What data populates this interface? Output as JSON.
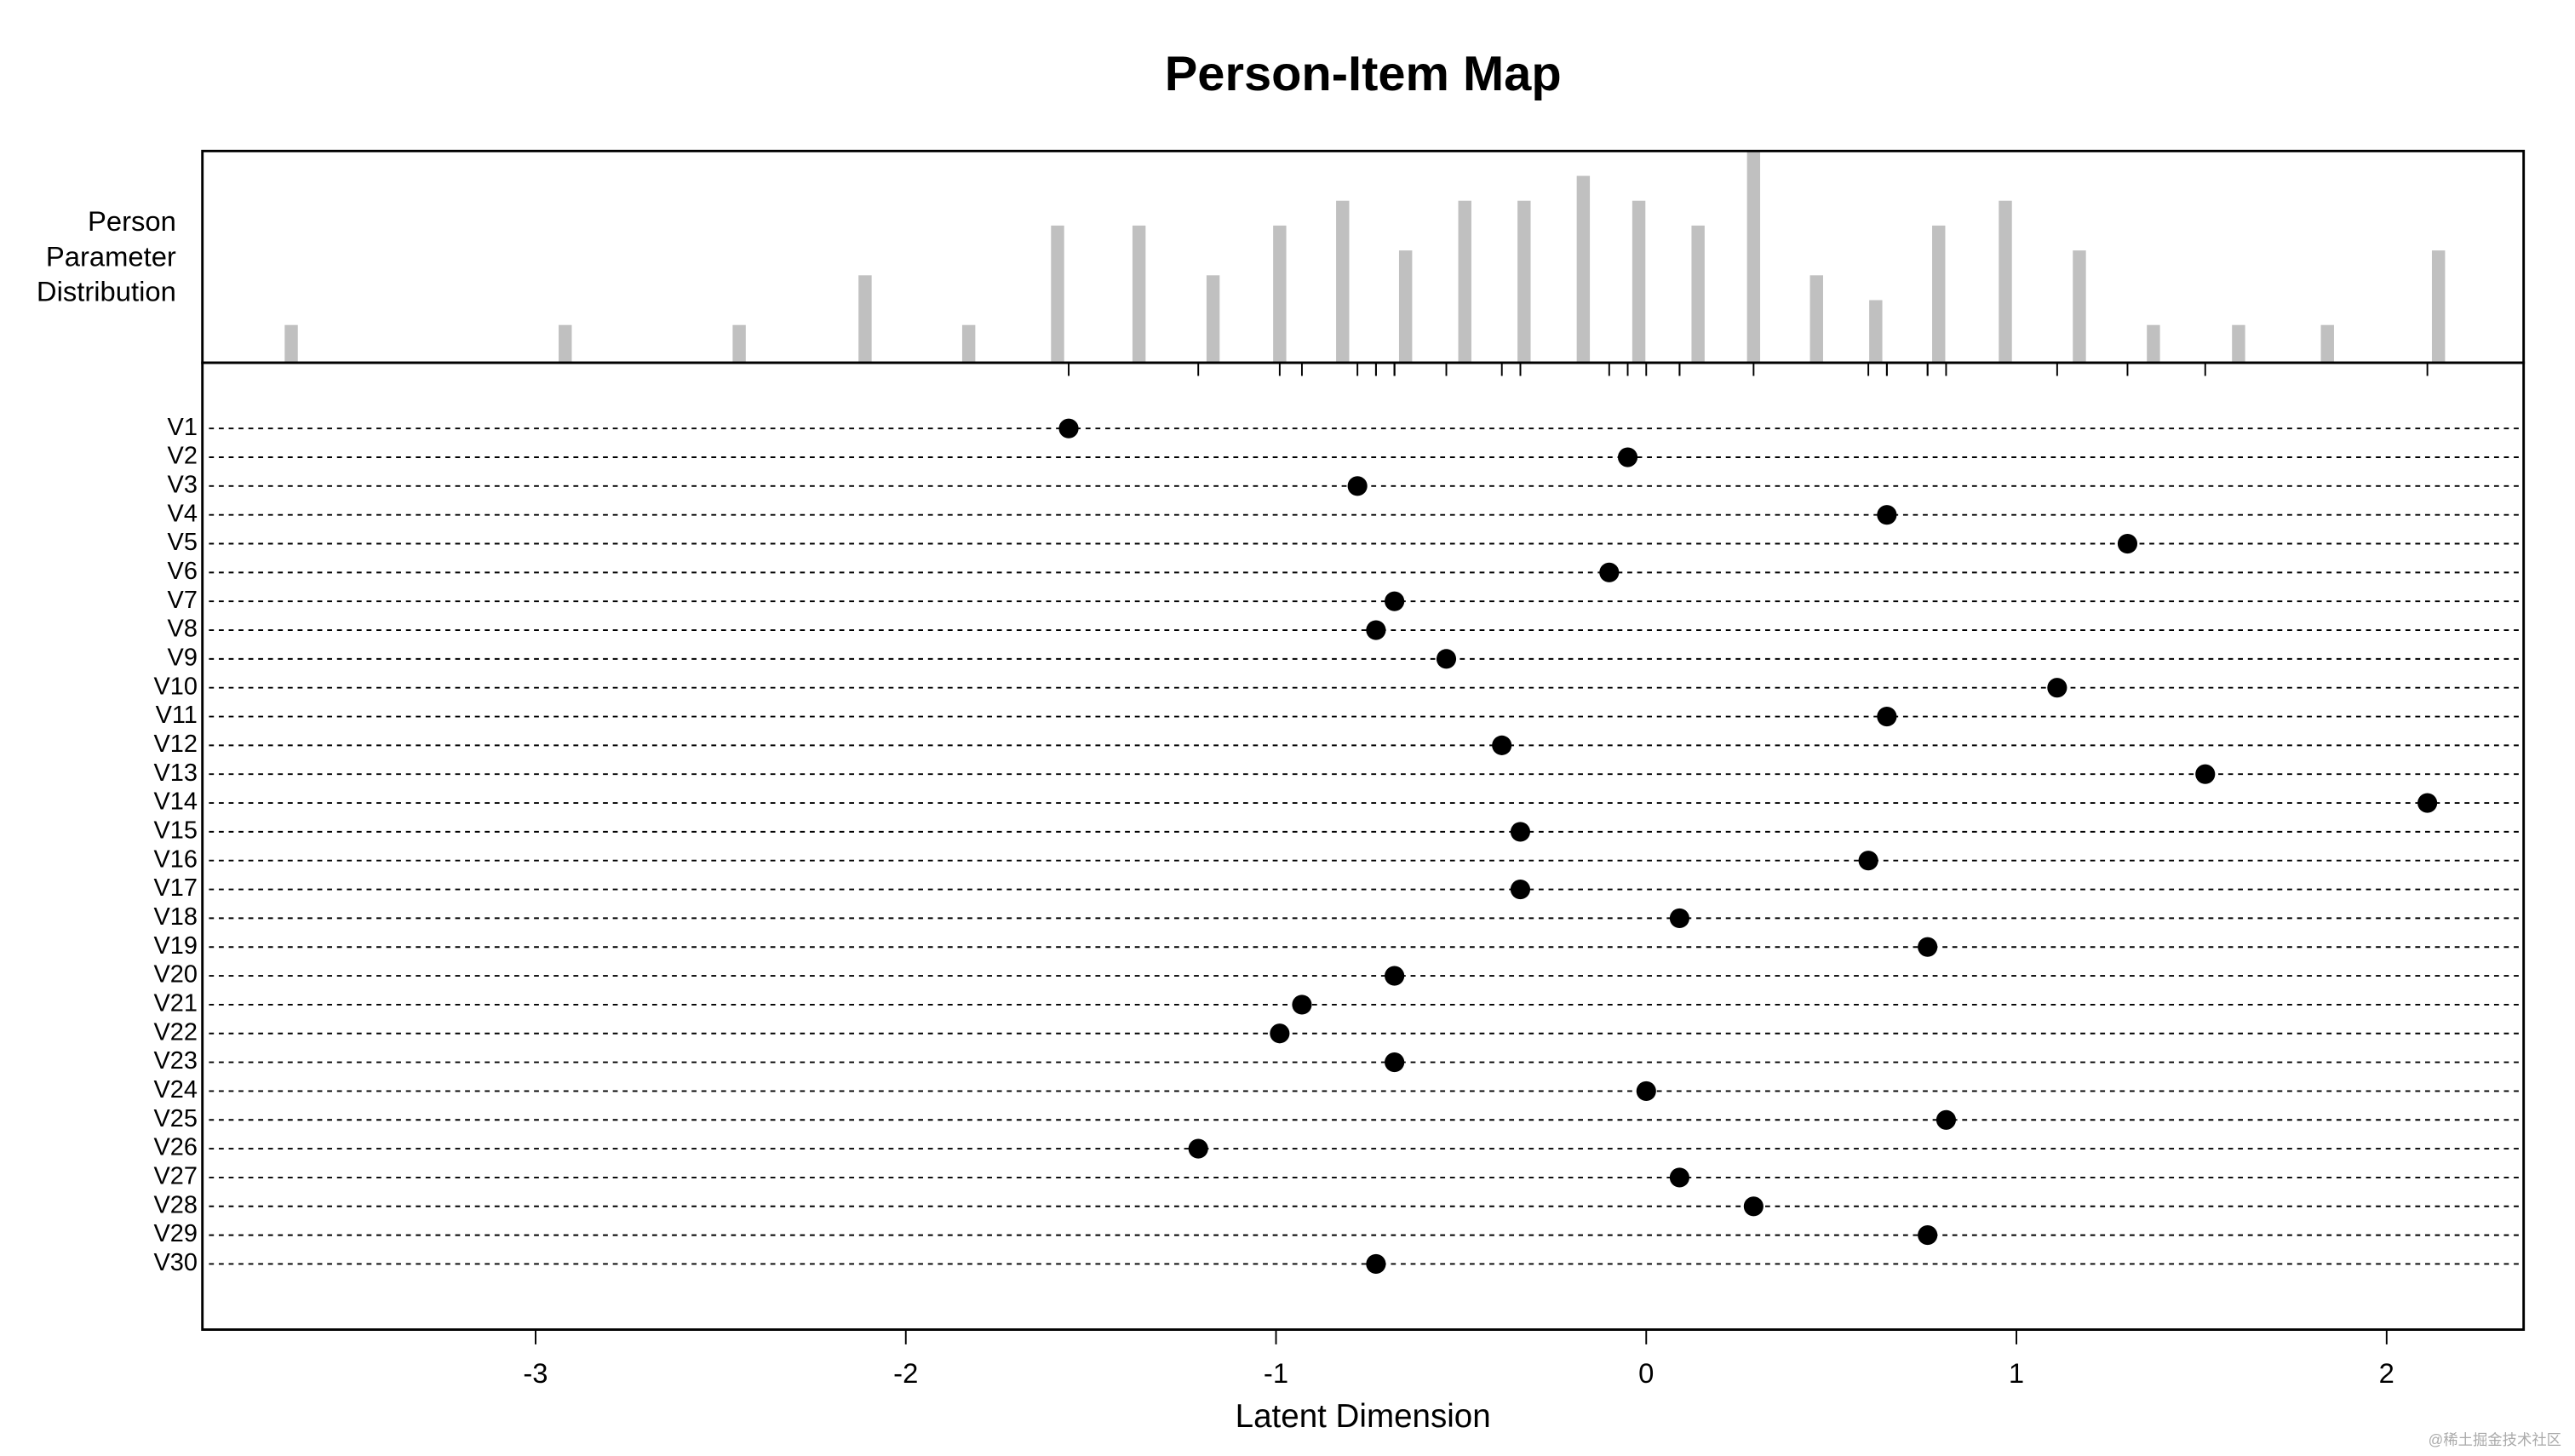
{
  "chart_data": {
    "type": "personitem",
    "title": "Person-Item Map",
    "x_label": "Latent Dimension",
    "xlim": [
      -3.9,
      2.37
    ],
    "xticks": [
      -3,
      -2,
      -1,
      0,
      1,
      2
    ],
    "person_distribution": {
      "label": [
        "Person",
        "Parameter",
        "Distribution"
      ],
      "color": "#c0c0c0",
      "ylim": [
        -0.52,
        8
      ],
      "x": [
        -3.66,
        -2.92,
        -2.45,
        -2.11,
        -1.83,
        -1.59,
        -1.37,
        -1.17,
        -0.99,
        -0.82,
        -0.65,
        -0.49,
        -0.33,
        -0.17,
        -0.02,
        0.14,
        0.29,
        0.46,
        0.62,
        0.79,
        0.97,
        1.17,
        1.37,
        1.6,
        1.84,
        2.14
      ],
      "values": [
        1,
        1,
        1,
        3,
        1,
        5,
        5,
        3,
        5,
        6,
        4,
        6,
        6,
        7,
        6,
        5,
        8,
        3,
        2,
        5,
        6,
        4,
        1,
        1,
        1,
        4
      ]
    },
    "items": {
      "color": "#000000",
      "categories": [
        "V1",
        "V2",
        "V3",
        "V4",
        "V5",
        "V6",
        "V7",
        "V8",
        "V9",
        "V10",
        "V11",
        "V12",
        "V13",
        "V14",
        "V15",
        "V16",
        "V17",
        "V18",
        "V19",
        "V20",
        "V21",
        "V22",
        "V23",
        "V24",
        "V25",
        "V26",
        "V27",
        "V28",
        "V29",
        "V30"
      ],
      "values": [
        -1.56,
        -0.05,
        -0.78,
        0.65,
        1.3,
        -0.1,
        -0.68,
        -0.73,
        -0.54,
        1.11,
        0.65,
        -0.39,
        1.51,
        2.11,
        -0.34,
        0.6,
        -0.34,
        0.09,
        0.76,
        -0.68,
        -0.93,
        -0.99,
        -0.68,
        0.0,
        0.81,
        -1.21,
        0.09,
        0.29,
        0.76,
        -0.73
      ]
    },
    "watermark": "@稀土掘金技术社区"
  }
}
